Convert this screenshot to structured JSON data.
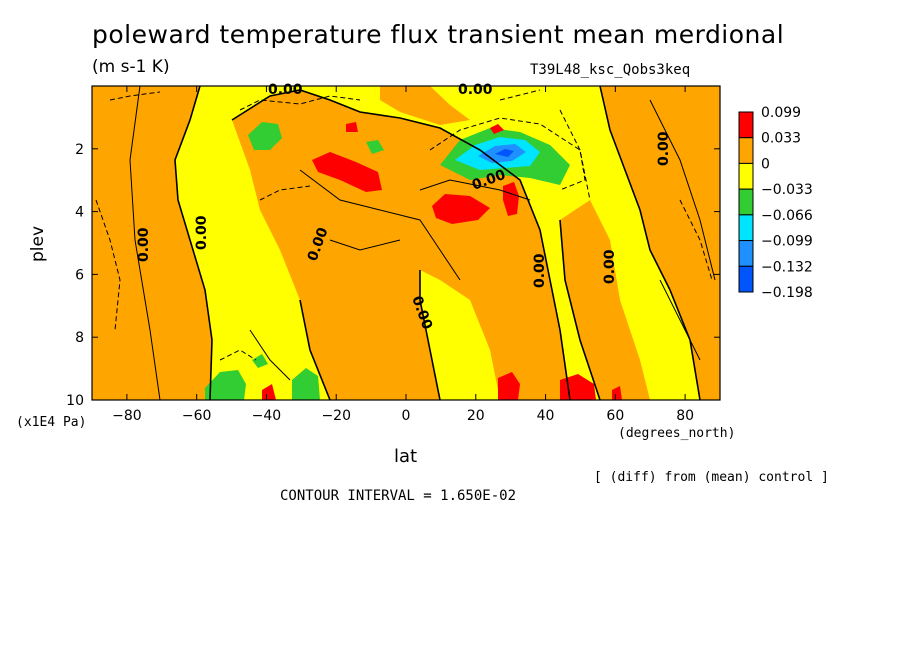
{
  "chart_data": {
    "type": "heatmap",
    "title": "poleward temperature flux transient mean merdional",
    "subtitle_units": "(m s-1 K)",
    "run_label": "T39L48_ksc_Qobs3keq",
    "xlabel": "lat",
    "x_units": "(degrees_north)",
    "ylabel": "plev",
    "y_units": "(x1E4 Pa)",
    "xlim": [
      -90,
      90
    ],
    "ylim": [
      10,
      0
    ],
    "x_ticks": [
      -80,
      -60,
      -40,
      -20,
      0,
      20,
      40,
      60,
      80
    ],
    "x_tick_labels": [
      "-80",
      "-60",
      "-40",
      "-20",
      "0",
      "20",
      "40",
      "60",
      "80"
    ],
    "y_ticks": [
      2,
      4,
      6,
      8,
      10
    ],
    "y_tick_labels": [
      "2",
      "4",
      "6",
      "8",
      "10"
    ],
    "colorbar": {
      "labels": [
        "0.099",
        "0.033",
        "0",
        "-0.033",
        "-0.066",
        "-0.099",
        "-0.132",
        "-0.198"
      ],
      "colors": [
        "#ff0000",
        "#ffa500",
        "#ffff00",
        "#32cd32",
        "#00e5ff",
        "#1e90ff",
        "#0055ff"
      ]
    },
    "contour_label": "0.00",
    "note": "[ (diff) from (mean) control ]",
    "contour_interval_text": "CONTOUR INTERVAL = 1.650E-02",
    "regions": [
      {
        "level": "positive",
        "lon": [
          -90,
          -50
        ],
        "plev": [
          0,
          10
        ]
      },
      {
        "level": "positive",
        "lon": [
          -30,
          40
        ],
        "plev": [
          3,
          8
        ]
      },
      {
        "level": "positive",
        "lon": [
          45,
          88
        ],
        "plev": [
          0,
          10
        ]
      },
      {
        "level": "max",
        "lon": [
          -27,
          -7
        ],
        "plev": [
          2.4,
          3.2
        ]
      },
      {
        "level": "max",
        "lon": [
          8,
          25
        ],
        "plev": [
          3.8,
          4.6
        ]
      },
      {
        "level": "max",
        "lon": [
          27,
          32
        ],
        "plev": [
          3.3,
          4.3
        ]
      },
      {
        "level": "min",
        "lon": [
          10,
          45
        ],
        "plev": [
          1.8,
          3.0
        ]
      },
      {
        "level": "min",
        "lon": [
          -45,
          -35
        ],
        "plev": [
          0.8,
          1.6
        ]
      },
      {
        "level": "min",
        "lon": [
          -52,
          -43
        ],
        "plev": [
          9.3,
          10
        ]
      },
      {
        "level": "min",
        "lon": [
          -36,
          -29
        ],
        "plev": [
          9.3,
          10
        ]
      }
    ]
  }
}
